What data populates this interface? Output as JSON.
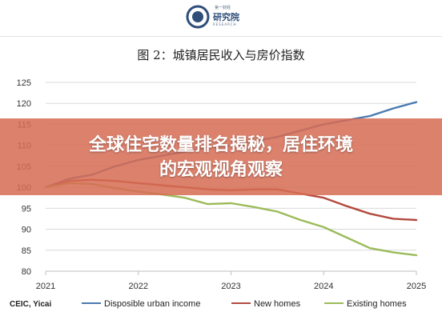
{
  "header": {
    "logo_top": "第一财经",
    "logo_main": "研究院",
    "logo_sub": "RESEARCH"
  },
  "figure_title": "图 2：城镇居民收入与房价指数",
  "overlay": {
    "headline_line1": "全球住宅数量排名揭秘，居住环境",
    "headline_line2": "的宏观视角观察"
  },
  "source": "CEIC, Yicai",
  "colors": {
    "disposible": "#4a7ab0",
    "new_homes": "#b34a3e",
    "existing_homes": "#9bbb59",
    "overlay": "#d66c54"
  },
  "chart_data": {
    "type": "line",
    "title": "图 2：城镇居民收入与房价指数",
    "xlabel": "",
    "ylabel": "",
    "xlim": [
      2021,
      2025
    ],
    "ylim": [
      80,
      125
    ],
    "x_ticks": [
      "2021",
      "2022",
      "2023",
      "2024",
      "2025"
    ],
    "y_ticks": [
      80,
      85,
      90,
      95,
      100,
      105,
      110,
      115,
      120,
      125
    ],
    "grid": true,
    "legend": "bottom",
    "series": [
      {
        "name": "Disposible urban income",
        "color": "#4a7ab0",
        "x": [
          2021,
          2021.25,
          2021.5,
          2021.75,
          2022,
          2022.25,
          2022.5,
          2022.75,
          2023,
          2023.25,
          2023.5,
          2023.75,
          2024,
          2024.25,
          2024.5,
          2024.75,
          2025
        ],
        "y": [
          100,
          102,
          103,
          105,
          106.5,
          107.5,
          108.5,
          109.5,
          110,
          111,
          112,
          113.5,
          115,
          116,
          117,
          118.8,
          120.3
        ]
      },
      {
        "name": "New homes",
        "color": "#b34a3e",
        "x": [
          2021,
          2021.25,
          2021.5,
          2021.75,
          2022,
          2022.25,
          2022.5,
          2022.75,
          2023,
          2023.25,
          2023.5,
          2023.75,
          2024,
          2024.25,
          2024.5,
          2024.75,
          2025
        ],
        "y": [
          100,
          101.5,
          101.8,
          101.5,
          101,
          100.5,
          100,
          99.5,
          99.3,
          99.5,
          99.5,
          98.5,
          97.5,
          95.5,
          93.7,
          92.5,
          92.2
        ]
      },
      {
        "name": "Existing homes",
        "color": "#9bbb59",
        "x": [
          2021,
          2021.25,
          2021.5,
          2021.75,
          2022,
          2022.25,
          2022.5,
          2022.75,
          2023,
          2023.25,
          2023.5,
          2023.75,
          2024,
          2024.25,
          2024.5,
          2024.75,
          2025
        ],
        "y": [
          100,
          101,
          100.8,
          99.8,
          99,
          98.3,
          97.5,
          96,
          96.2,
          95.3,
          94.2,
          92.2,
          90.5,
          88,
          85.5,
          84.5,
          83.8
        ]
      }
    ]
  }
}
